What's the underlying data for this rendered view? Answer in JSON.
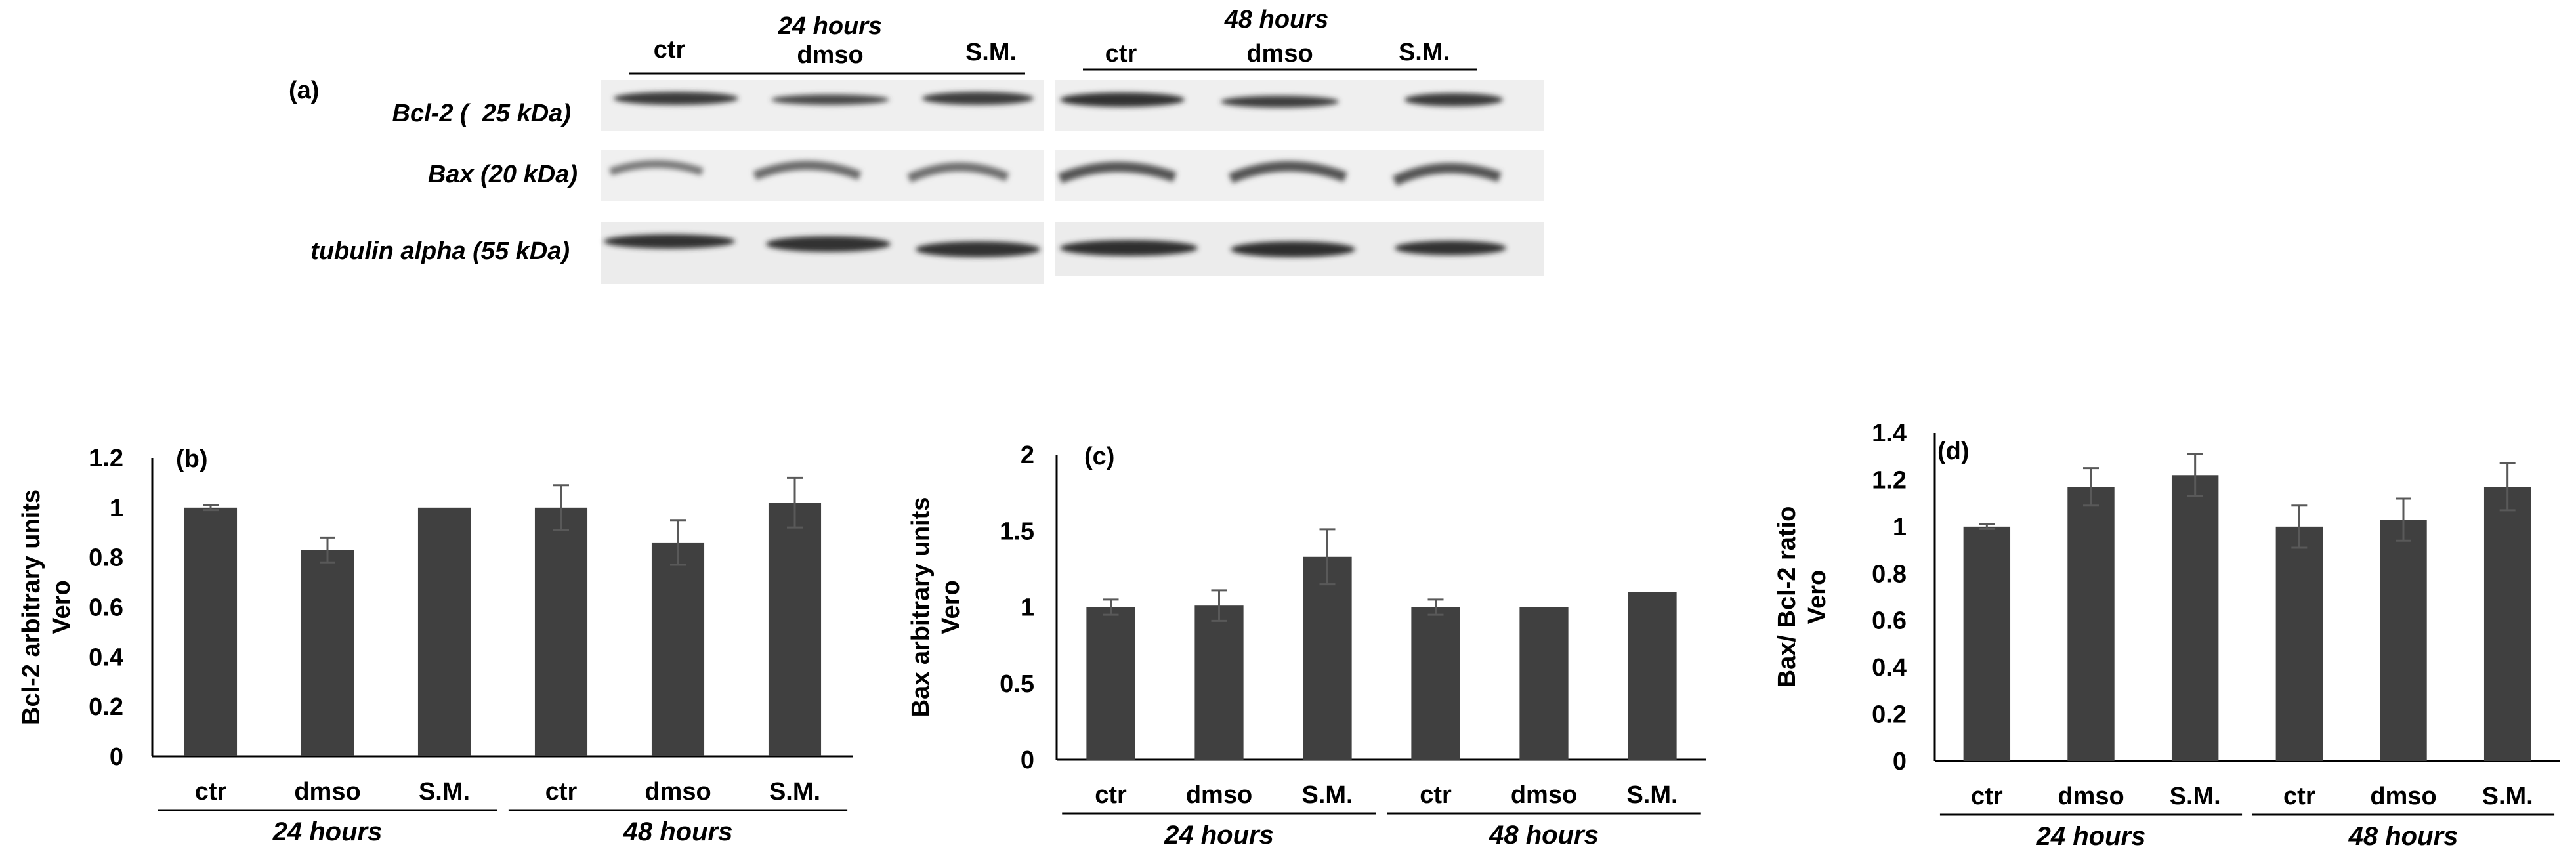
{
  "blot": {
    "panel_label": "(a)",
    "groups": [
      {
        "time": "24 hours",
        "lanes": [
          "ctr",
          "dmso",
          "S.M."
        ]
      },
      {
        "time": "48 hours",
        "lanes": [
          "ctr",
          "dmso",
          "S.M."
        ]
      }
    ],
    "rows": [
      {
        "label": "Bcl-2 (  25 kDa)"
      },
      {
        "label": "Bax (20 kDa)"
      },
      {
        "label": "tubulin alpha (55 kDa)"
      }
    ]
  },
  "chart_data": [
    {
      "type": "bar",
      "panel_label": "(b)",
      "ylabel": [
        "Bcl-2 arbitrary units",
        "Vero"
      ],
      "categories": [
        "ctr",
        "dmso",
        "S.M.",
        "ctr",
        "dmso",
        "S.M."
      ],
      "groups": [
        {
          "name": "24 hours",
          "span": [
            0,
            2
          ]
        },
        {
          "name": "48 hours",
          "span": [
            3,
            5
          ]
        }
      ],
      "values": [
        1.0,
        0.83,
        1.0,
        1.0,
        0.86,
        1.02
      ],
      "errors": [
        0.01,
        0.05,
        0.0,
        0.09,
        0.09,
        0.1
      ],
      "ylim": [
        0,
        1.2
      ],
      "yticks": [
        0,
        0.2,
        0.4,
        0.6,
        0.8,
        1,
        1.2
      ],
      "grid": false,
      "bar_color": "#404040"
    },
    {
      "type": "bar",
      "panel_label": "(c)",
      "ylabel": [
        "Bax arbitrary units",
        "Vero"
      ],
      "categories": [
        "ctr",
        "dmso",
        "S.M.",
        "ctr",
        "dmso",
        "S.M."
      ],
      "groups": [
        {
          "name": "24 hours",
          "span": [
            0,
            2
          ]
        },
        {
          "name": "48 hours",
          "span": [
            3,
            5
          ]
        }
      ],
      "values": [
        1.0,
        1.01,
        1.33,
        1.0,
        1.0,
        1.1
      ],
      "errors": [
        0.05,
        0.1,
        0.18,
        0.05,
        0.0,
        0.0
      ],
      "ylim": [
        0,
        2
      ],
      "yticks": [
        0,
        0.5,
        1,
        1.5,
        2
      ],
      "grid": false,
      "bar_color": "#404040"
    },
    {
      "type": "bar",
      "panel_label": "(d)",
      "ylabel": [
        "Bax/ Bcl-2  ratio",
        "Vero"
      ],
      "categories": [
        "ctr",
        "dmso",
        "S.M.",
        "ctr",
        "dmso",
        "S.M."
      ],
      "groups": [
        {
          "name": "24 hours",
          "span": [
            0,
            2
          ]
        },
        {
          "name": "48 hours",
          "span": [
            3,
            5
          ]
        }
      ],
      "values": [
        1.0,
        1.17,
        1.22,
        1.0,
        1.03,
        1.17
      ],
      "errors": [
        0.01,
        0.08,
        0.09,
        0.09,
        0.09,
        0.1
      ],
      "ylim": [
        0,
        1.4
      ],
      "yticks": [
        0,
        0.2,
        0.4,
        0.6,
        0.8,
        1,
        1.2,
        1.4
      ],
      "grid": false,
      "bar_color": "#404040"
    }
  ]
}
